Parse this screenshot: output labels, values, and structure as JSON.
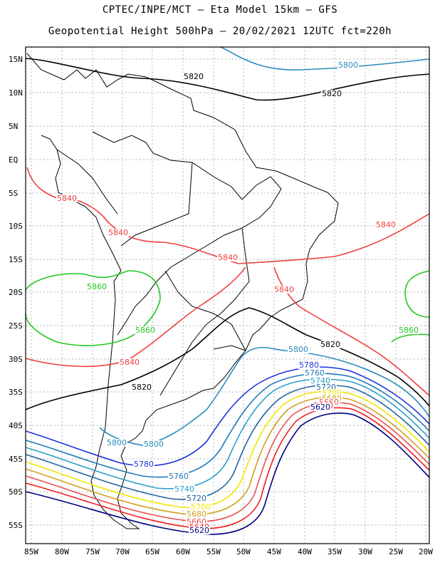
{
  "title_line1": "CPTEC/INPE/MCT –  Eta Model 15km – GFS",
  "title_line2": "Geopotential Height 500hPa – 20/02/2021 12UTC fct=220h",
  "lat_labels": [
    "15N",
    "10N",
    "5N",
    "EQ",
    "5S",
    "10S",
    "15S",
    "20S",
    "25S",
    "30S",
    "35S",
    "40S",
    "45S",
    "50S",
    "55S"
  ],
  "lon_labels": [
    "85W",
    "80W",
    "75W",
    "70W",
    "65W",
    "60W",
    "55W",
    "50W",
    "45W",
    "40W",
    "35W",
    "30W",
    "25W",
    "20W"
  ],
  "contours": [
    {
      "value": "5860",
      "color": "#22c822"
    },
    {
      "value": "5840",
      "color": "#f04040"
    },
    {
      "value": "5820",
      "color": "#000000"
    },
    {
      "value": "5800",
      "color": "#2a8cbe"
    },
    {
      "value": "5780",
      "color": "#1e32dc"
    },
    {
      "value": "5760",
      "color": "#1e7ab8"
    },
    {
      "value": "5740",
      "color": "#28a0c8"
    },
    {
      "value": "5720",
      "color": "#1e64a0"
    },
    {
      "value": "5700",
      "color": "#f0e600"
    },
    {
      "value": "5680",
      "color": "#d2a020"
    },
    {
      "value": "5660",
      "color": "#e65050"
    },
    {
      "value": "5640",
      "color": "#f01e1e"
    },
    {
      "value": "5620",
      "color": "#000080"
    }
  ]
}
